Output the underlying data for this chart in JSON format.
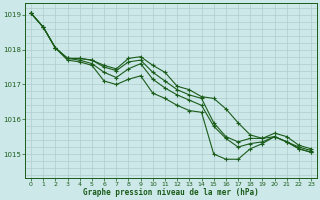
{
  "bg_color": "#cde8e8",
  "grid_color": "#b8d8d8",
  "line_color": "#1a5c1a",
  "xlabel": "Graphe pression niveau de la mer (hPa)",
  "xlabel_color": "#1a5c1a",
  "ylabel_color": "#1a5c1a",
  "xlim": [
    -0.5,
    23.5
  ],
  "ylim": [
    1014.3,
    1019.35
  ],
  "yticks": [
    1015,
    1016,
    1017,
    1018,
    1019
  ],
  "xticks": [
    0,
    1,
    2,
    3,
    4,
    5,
    6,
    7,
    8,
    9,
    10,
    11,
    12,
    13,
    14,
    15,
    16,
    17,
    18,
    19,
    20,
    21,
    22,
    23
  ],
  "series": [
    [
      1019.05,
      1018.65,
      1018.05,
      1017.75,
      1017.75,
      1017.7,
      1017.55,
      1017.45,
      1017.75,
      1017.8,
      1017.55,
      1017.35,
      1016.95,
      1016.85,
      1016.65,
      1016.6,
      1016.3,
      1015.9,
      1015.55,
      1015.45,
      1015.5,
      1015.35,
      1015.2,
      1015.1
    ],
    [
      1019.05,
      1018.65,
      1018.05,
      1017.75,
      1017.7,
      1017.6,
      1017.35,
      1017.2,
      1017.45,
      1017.6,
      1017.15,
      1016.9,
      1016.7,
      1016.55,
      1016.4,
      1015.8,
      1015.45,
      1015.2,
      1015.3,
      1015.35,
      1015.5,
      1015.35,
      1015.15,
      1015.05
    ],
    [
      1019.05,
      1018.65,
      1018.05,
      1017.7,
      1017.65,
      1017.55,
      1017.1,
      1017.0,
      1017.15,
      1017.25,
      1016.75,
      1016.6,
      1016.4,
      1016.25,
      1016.2,
      1015.0,
      1014.85,
      1014.85,
      1015.15,
      1015.3,
      1015.5,
      1015.35,
      1015.15,
      1015.05
    ],
    [
      1019.05,
      1018.65,
      1018.05,
      1017.75,
      1017.75,
      1017.7,
      1017.5,
      1017.4,
      1017.65,
      1017.7,
      1017.35,
      1017.1,
      1016.85,
      1016.7,
      1016.6,
      1015.9,
      1015.5,
      1015.35,
      1015.45,
      1015.45,
      1015.6,
      1015.5,
      1015.25,
      1015.15
    ]
  ]
}
